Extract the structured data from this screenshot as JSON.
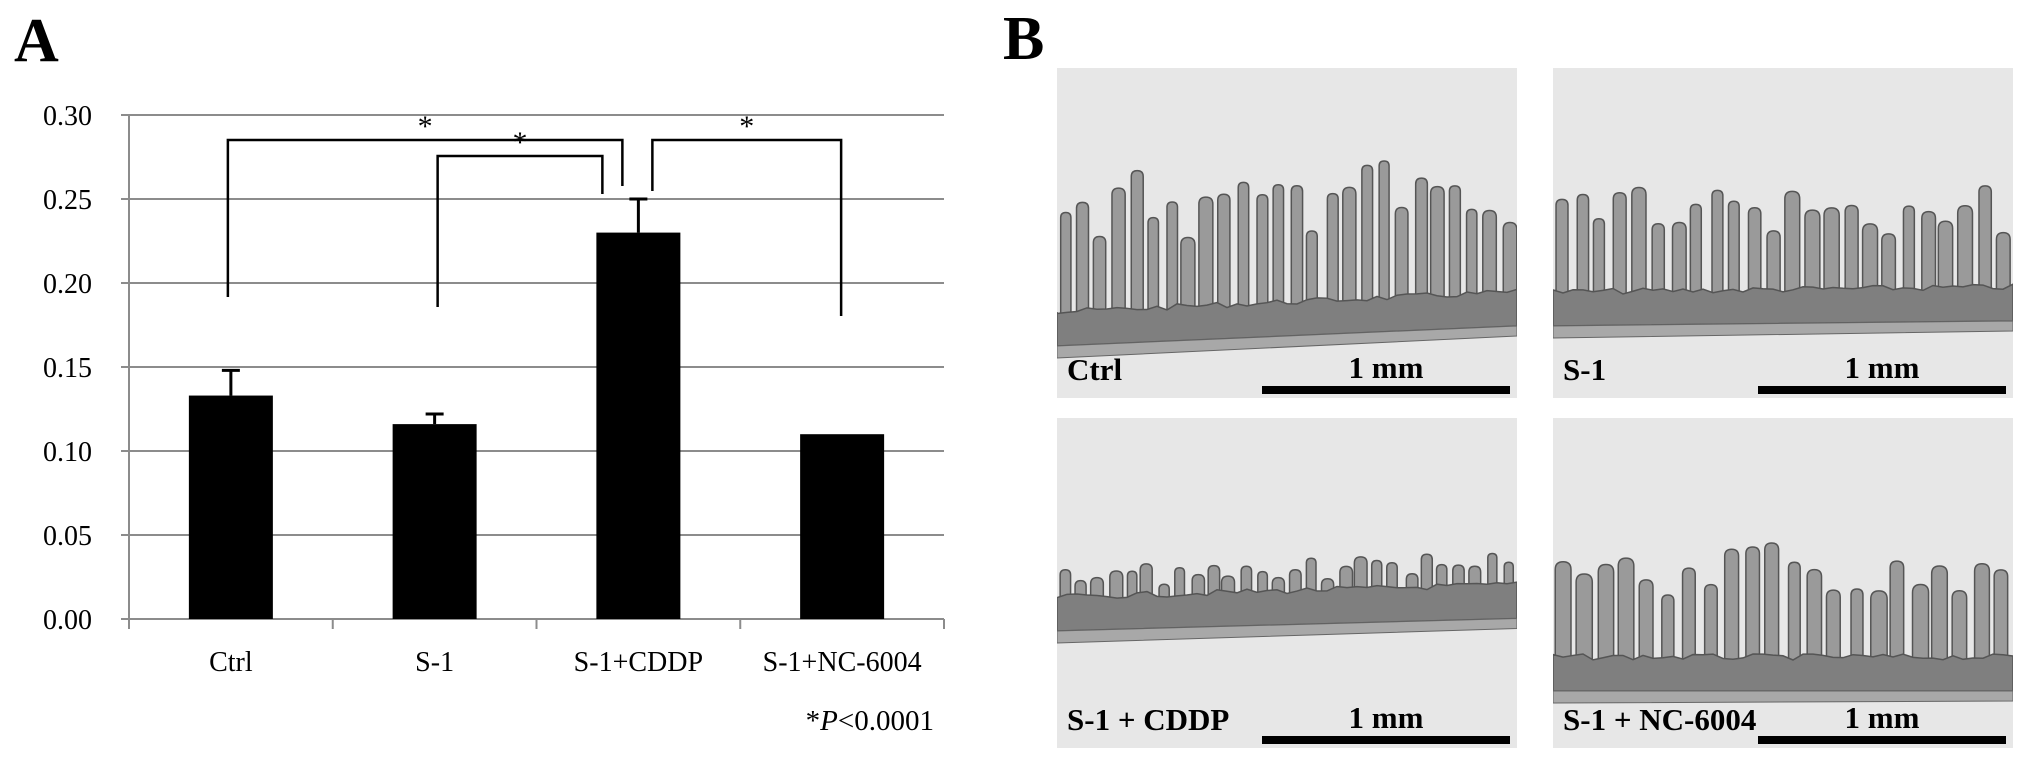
{
  "panel_a": {
    "letter": "A"
  },
  "panel_b": {
    "letter": "B"
  },
  "chart_data": {
    "type": "bar",
    "categories": [
      "Ctrl",
      "S-1",
      "S-1+CDDP",
      "S-1+NC-6004"
    ],
    "values": [
      0.133,
      0.116,
      0.23,
      0.11
    ],
    "error_bars": [
      0.015,
      0.006,
      0.02,
      0.0
    ],
    "ylim": [
      0.0,
      0.3
    ],
    "yticks": [
      "0.00",
      "0.05",
      "0.10",
      "0.15",
      "0.20",
      "0.25",
      "0.30"
    ],
    "grid": true,
    "bar_color": "#000000",
    "significance": [
      {
        "from": "Ctrl",
        "to": "S-1+CDDP",
        "label": "*"
      },
      {
        "from": "S-1",
        "to": "S-1+CDDP",
        "label": "*"
      },
      {
        "from": "S-1+CDDP",
        "to": "S-1+NC-6004",
        "label": "*"
      }
    ],
    "footnote": {
      "star": "*",
      "p_symbol": "P",
      "rest": "<0.0001"
    }
  },
  "micrographs": [
    {
      "label": "Ctrl",
      "scale": "1 mm",
      "villus_height": "tall"
    },
    {
      "label": "S-1",
      "scale": "1 mm",
      "villus_height": "medium"
    },
    {
      "label": "S-1 + CDDP",
      "scale": "1 mm",
      "villus_height": "short"
    },
    {
      "label": "S-1 + NC-6004",
      "scale": "1 mm",
      "villus_height": "medium-tall"
    }
  ]
}
